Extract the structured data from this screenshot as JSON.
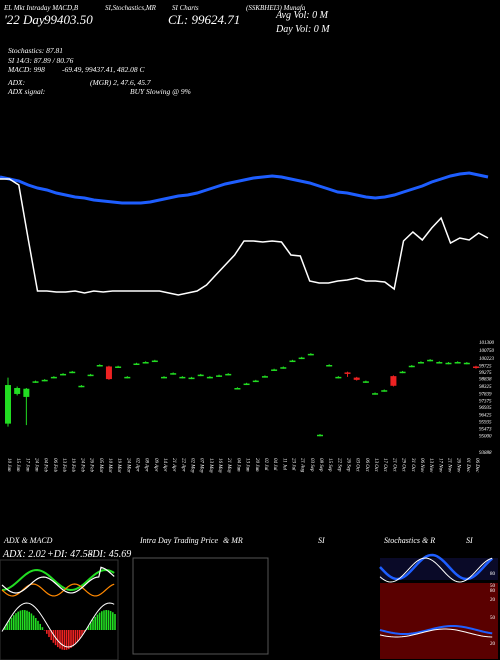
{
  "header": {
    "col1": "EL Mkt Intraday MACD,B",
    "col2": "SI,Stochastics,MR",
    "col3": "SI Charts",
    "col4": "(SSKBHEI3) Munafa",
    "price_label": "'22 Day",
    "price_value": "99403.50",
    "close_label": "CL: 99624.71",
    "avg_vol": "Avg Vol: 0   M",
    "day_vol": "Day Vol: 0   M"
  },
  "indicators": {
    "stochastics": "Stochastics: 87.81",
    "si": "SI 14/3: 87.89 / 80.76",
    "macd_label": "MACD: 998",
    "macd_values": "-69.49, 99437.41, 482.08  C",
    "adx_label": "ADX:",
    "adx_values": "(MGR) 2, 47.6, 45.7",
    "adx_signal_label": "ADX signal:",
    "adx_signal_value": "BUY Slowing @ 9%"
  },
  "chart_data": [
    {
      "type": "candlestick",
      "dates": [
        "10 Jan",
        "15 Jan",
        "17 Jan",
        "24 Jan",
        "04 Feb",
        "06 Feb",
        "13 Feb",
        "19 Feb",
        "24 Feb",
        "26 Feb",
        "05 Mar",
        "10 Mar",
        "19 Mar",
        "24 Mar",
        "02 Apr",
        "08 Apr",
        "09 Apr",
        "14 Apr",
        "21 Apr",
        "22 Apr",
        "02 May",
        "07 May",
        "13 May",
        "16 May",
        "21 May",
        "04 Jun",
        "13 Jun",
        "20 Jun",
        "02 Jul",
        "04 Jul",
        "11 Jul",
        "23 Jul",
        "21 Aug",
        "03 Sep",
        "08 Sep",
        "15 Sep",
        "22 Sep",
        "26 Sep",
        "03 Oct",
        "06 Oct",
        "13 Oct",
        "17 Oct",
        "21 Oct",
        "29 Oct",
        "31 Oct",
        "06 Nov",
        "13 Nov",
        "17 Nov",
        "21 Nov",
        "26 Nov",
        "01 Dec",
        "06 Dec"
      ],
      "y_ticks": [
        101300.0,
        100750,
        100223,
        99725,
        99275,
        98838,
        98325,
        97839,
        97375,
        96935,
        96425,
        95935,
        95473,
        95000,
        93888
      ],
      "candles": [
        {
          "o": 95800,
          "c": 98400,
          "h": 98900,
          "l": 95600
        },
        {
          "o": 97800,
          "c": 98200,
          "h": 98300,
          "l": 97700
        },
        {
          "o": 97600,
          "c": 98150,
          "h": 98200,
          "l": 95700
        },
        {
          "o": 98600,
          "c": 98650,
          "h": 98700,
          "l": 98550
        },
        {
          "o": 98700,
          "c": 98750,
          "h": 98800,
          "l": 98650
        },
        {
          "o": 98900,
          "c": 98950,
          "h": 99000,
          "l": 98850
        },
        {
          "o": 99100,
          "c": 99150,
          "h": 99200,
          "l": 99050
        },
        {
          "o": 99250,
          "c": 99300,
          "h": 99350,
          "l": 99200
        },
        {
          "o": 98300,
          "c": 98350,
          "h": 98400,
          "l": 98250
        },
        {
          "o": 99050,
          "c": 99100,
          "h": 99150,
          "l": 99000
        },
        {
          "o": 99700,
          "c": 99750,
          "h": 99800,
          "l": 99650
        },
        {
          "o": 99650,
          "c": 98800,
          "h": 99700,
          "l": 98750
        },
        {
          "o": 99600,
          "c": 99650,
          "h": 99700,
          "l": 99550
        },
        {
          "o": 98900,
          "c": 98950,
          "h": 99000,
          "l": 98850
        },
        {
          "o": 99800,
          "c": 99850,
          "h": 99900,
          "l": 99750
        },
        {
          "o": 99900,
          "c": 99950,
          "h": 100000,
          "l": 99850
        },
        {
          "o": 100000,
          "c": 100050,
          "h": 100100,
          "l": 99950
        },
        {
          "o": 98900,
          "c": 98950,
          "h": 99000,
          "l": 98850
        },
        {
          "o": 99150,
          "c": 99200,
          "h": 99250,
          "l": 99100
        },
        {
          "o": 98900,
          "c": 98950,
          "h": 99000,
          "l": 98850
        },
        {
          "o": 98850,
          "c": 98900,
          "h": 98950,
          "l": 98800
        },
        {
          "o": 99050,
          "c": 99100,
          "h": 99150,
          "l": 99000
        },
        {
          "o": 98900,
          "c": 98950,
          "h": 99000,
          "l": 98850
        },
        {
          "o": 99000,
          "c": 99050,
          "h": 99100,
          "l": 98950
        },
        {
          "o": 99100,
          "c": 99150,
          "h": 99200,
          "l": 99050
        },
        {
          "o": 98150,
          "c": 98200,
          "h": 98250,
          "l": 98100
        },
        {
          "o": 98450,
          "c": 98500,
          "h": 98550,
          "l": 98400
        },
        {
          "o": 98650,
          "c": 98700,
          "h": 98750,
          "l": 98600
        },
        {
          "o": 98950,
          "c": 99000,
          "h": 99050,
          "l": 98900
        },
        {
          "o": 99400,
          "c": 99450,
          "h": 99500,
          "l": 99350
        },
        {
          "o": 99550,
          "c": 99600,
          "h": 99650,
          "l": 99500
        },
        {
          "o": 100000,
          "c": 100050,
          "h": 100100,
          "l": 99950
        },
        {
          "o": 100200,
          "c": 100250,
          "h": 100300,
          "l": 100150
        },
        {
          "o": 100450,
          "c": 100500,
          "h": 100550,
          "l": 100400
        },
        {
          "o": 95000,
          "c": 95050,
          "h": 95100,
          "l": 94950
        },
        {
          "o": 99700,
          "c": 99750,
          "h": 99800,
          "l": 99650
        },
        {
          "o": 98900,
          "c": 98950,
          "h": 99000,
          "l": 98850
        },
        {
          "o": 99250,
          "c": 99150,
          "h": 99300,
          "l": 98950
        },
        {
          "o": 98900,
          "c": 98750,
          "h": 98950,
          "l": 98700
        },
        {
          "o": 98600,
          "c": 98650,
          "h": 98700,
          "l": 98550
        },
        {
          "o": 97800,
          "c": 97850,
          "h": 97900,
          "l": 97750
        },
        {
          "o": 98000,
          "c": 98050,
          "h": 98100,
          "l": 97950
        },
        {
          "o": 99000,
          "c": 98350,
          "h": 99050,
          "l": 98300
        },
        {
          "o": 99250,
          "c": 99300,
          "h": 99350,
          "l": 99200
        },
        {
          "o": 99650,
          "c": 99700,
          "h": 99750,
          "l": 99600
        },
        {
          "o": 99900,
          "c": 99950,
          "h": 100000,
          "l": 99850
        },
        {
          "o": 100050,
          "c": 100100,
          "h": 100150,
          "l": 100000
        },
        {
          "o": 99900,
          "c": 99950,
          "h": 100000,
          "l": 99850
        },
        {
          "o": 99850,
          "c": 99900,
          "h": 99950,
          "l": 99800
        },
        {
          "o": 99900,
          "c": 99950,
          "h": 100000,
          "l": 99850
        },
        {
          "o": 99850,
          "c": 99900,
          "h": 99950,
          "l": 99800
        },
        {
          "o": 99650,
          "c": 99550,
          "h": 99700,
          "l": 99500
        }
      ],
      "overlay": {
        "white_line": [
          84,
          84,
          90,
          144,
          196,
          196,
          197,
          197,
          196,
          198,
          196,
          197,
          196,
          196,
          196,
          196,
          196,
          196,
          198,
          200,
          198,
          196,
          190,
          180,
          170,
          160,
          146,
          146,
          147,
          146,
          147,
          160,
          161,
          186,
          188,
          188,
          186,
          185,
          183,
          186,
          186,
          187,
          194,
          146,
          137,
          145,
          133,
          123,
          148,
          143,
          145,
          138,
          143
        ],
        "blue_line": [
          92,
          94,
          96,
          100,
          103,
          105,
          108,
          110,
          112,
          113,
          115,
          116,
          117,
          118,
          118,
          118,
          117,
          115,
          113,
          111,
          110,
          108,
          105,
          102,
          99,
          97,
          95,
          93,
          92,
          91,
          92,
          94,
          96,
          98,
          101,
          104,
          107,
          108,
          110,
          112,
          113,
          112,
          110,
          107,
          104,
          101,
          97,
          94,
          91,
          89,
          88,
          90,
          92
        ]
      }
    },
    {
      "type": "line",
      "title": "ADX & MACD",
      "adx_text": "ADX: 2.02",
      "di_plus_text": "+DI: 47.58",
      "di_minus_text": "-DI: 45.69"
    },
    {
      "type": "line",
      "title": "Intra Day Trading Price",
      "subtitle": "& MR",
      "extra": "SI"
    },
    {
      "type": "line",
      "title": "Stochastics & R",
      "extra": "SI",
      "stoch_ticks": [
        "80",
        "50",
        "20"
      ],
      "rsi_ticks": [
        "80",
        "50",
        "20"
      ]
    }
  ]
}
